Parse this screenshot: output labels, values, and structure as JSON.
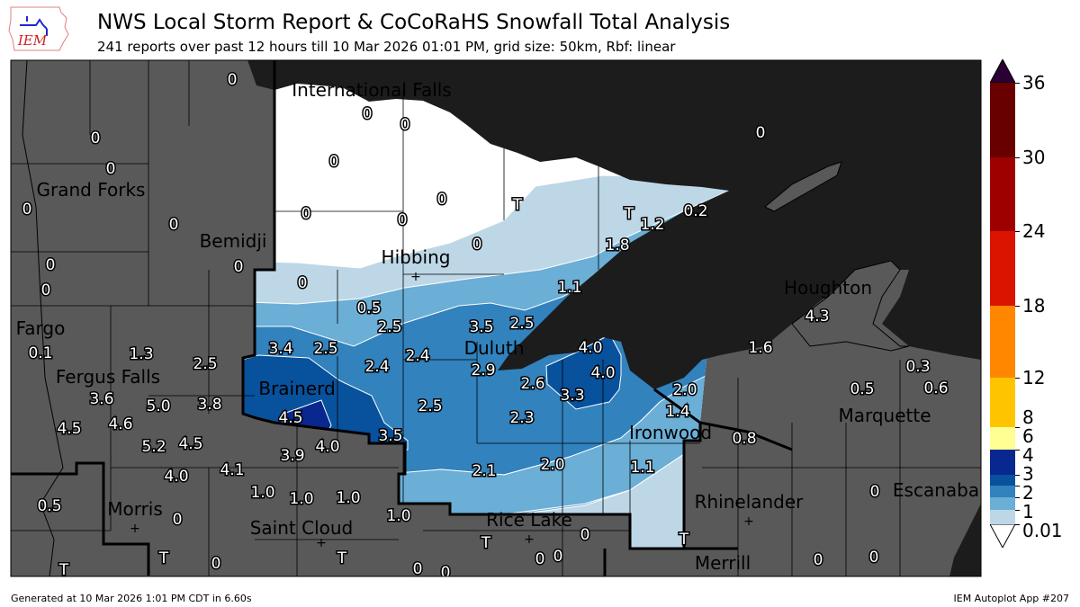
{
  "header": {
    "title": "NWS Local Storm Report & CoCoRaHS Snowfall Total Analysis",
    "subtitle": "241 reports over past 12 hours till 10 Mar 2026 01:01 PM, grid size: 50km, Rbf: linear",
    "logo_text": "IEM"
  },
  "colors": {
    "land_outside": "#595959",
    "water_and_canada": "#1c1c1c",
    "band_0": "#ffffff",
    "band_0.01_1": "#bdd7e7",
    "band_1_2": "#6baed6",
    "band_2_3": "#3182bd",
    "band_3_4": "#08519c",
    "band_4_6": "#08288f"
  },
  "colorbar": {
    "levels": [
      "0.01",
      "1",
      "2",
      "3",
      "4",
      "6",
      "8",
      "12",
      "18",
      "24",
      "30",
      "36"
    ],
    "colors": [
      "#bdd7e7",
      "#6baed6",
      "#3182bd",
      "#08519c",
      "#08288f",
      "#ffff94",
      "#ffc400",
      "#ff8700",
      "#db1400",
      "#9e0000",
      "#690000"
    ],
    "under_color": "#ffffff",
    "over_color": "#2b0034"
  },
  "cities": [
    "International Falls",
    "Grand Forks",
    "Bemidji",
    "Hibbing",
    "Houghton",
    "Fargo",
    "Duluth",
    "Marquette",
    "Ironwood",
    "Brainerd",
    "Fergus Falls",
    "Escanaba",
    "Rhinelander",
    "Morris",
    "Saint Cloud",
    "Rice Lake",
    "Merrill"
  ],
  "reports": [
    "0",
    "0",
    "0",
    "0",
    "0",
    "0",
    "0",
    "0",
    "T",
    "T",
    "1.2",
    "0.2",
    "0",
    "0",
    "0",
    "0",
    "0",
    "1.8",
    "0",
    "0",
    "0",
    "0",
    "1.1",
    "0.5",
    "4.3",
    "2.5",
    "3.5",
    "2.5",
    "0.1",
    "1.3",
    "3.4",
    "2.5",
    "4.0",
    "1.6",
    "2.5",
    "2.4",
    "2.4",
    "2.9",
    "4.0",
    "0.3",
    "0.5",
    "0.6",
    "2.6",
    "3.3",
    "2.0",
    "3.6",
    "5.0",
    "3.8",
    "4.5",
    "2.5",
    "1.4",
    "4.6",
    "4.5",
    "2.3",
    "0.8",
    "3.5",
    "5.2",
    "4.5",
    "3.9",
    "4.0",
    "2.1",
    "2.0",
    "1.1",
    "4.0",
    "4.1",
    "1.0",
    "1.0",
    "1.0",
    "0",
    "0.5",
    "1.0",
    "0",
    "0",
    "T",
    "T",
    "T",
    "0",
    "T",
    "0",
    "0",
    "0",
    "0",
    "T",
    "0",
    "0"
  ],
  "footer": {
    "generated": "Generated at 10 Mar 2026 1:01 PM CDT in 6.60s",
    "app": "IEM Autoplot App #207"
  }
}
